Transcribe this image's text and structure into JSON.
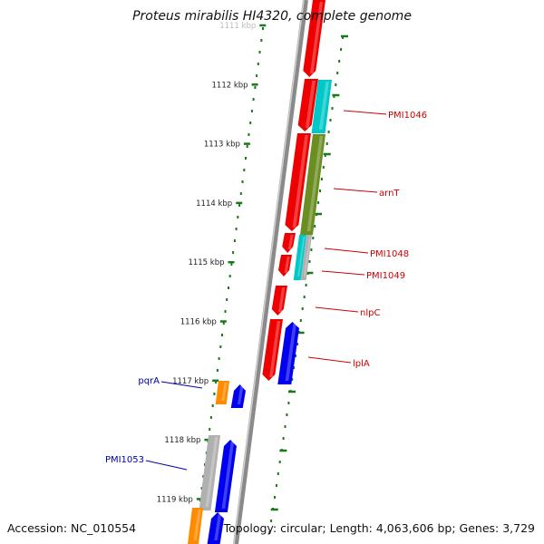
{
  "title": "Proteus mirabilis HI4320, complete genome",
  "footer": {
    "accession": "Accession: NC_010554",
    "topology": "Topology: circular; Length: 4,063,606 bp; Genes: 3,729"
  },
  "ruler_labels": [
    "1111 kbp",
    "1112 kbp",
    "1113 kbp",
    "1114 kbp",
    "1115 kbp",
    "1116 kbp",
    "1117 kbp",
    "1118 kbp",
    "1119 kbp"
  ],
  "gene_labels": [
    {
      "text": "PMI1046",
      "strand": "plus"
    },
    {
      "text": "arnT",
      "strand": "plus"
    },
    {
      "text": "PMI1048",
      "strand": "plus"
    },
    {
      "text": "PMI1049",
      "strand": "plus"
    },
    {
      "text": "nlpC",
      "strand": "plus"
    },
    {
      "text": "lplA",
      "strand": "plus"
    },
    {
      "text": "pqrA",
      "strand": "minus"
    },
    {
      "text": "PMI1053",
      "strand": "minus"
    }
  ],
  "colors": {
    "red": "#ee0000",
    "cyan": "#00c8c8",
    "olive": "#6b8e23",
    "blue": "#0000ee",
    "orange": "#ff8c00",
    "gray": "#b0b0b0",
    "backbone": "#8a8a8a",
    "tick": "#1a7a1a",
    "plus_label": "#cc0000",
    "minus_label": "#0000aa"
  }
}
